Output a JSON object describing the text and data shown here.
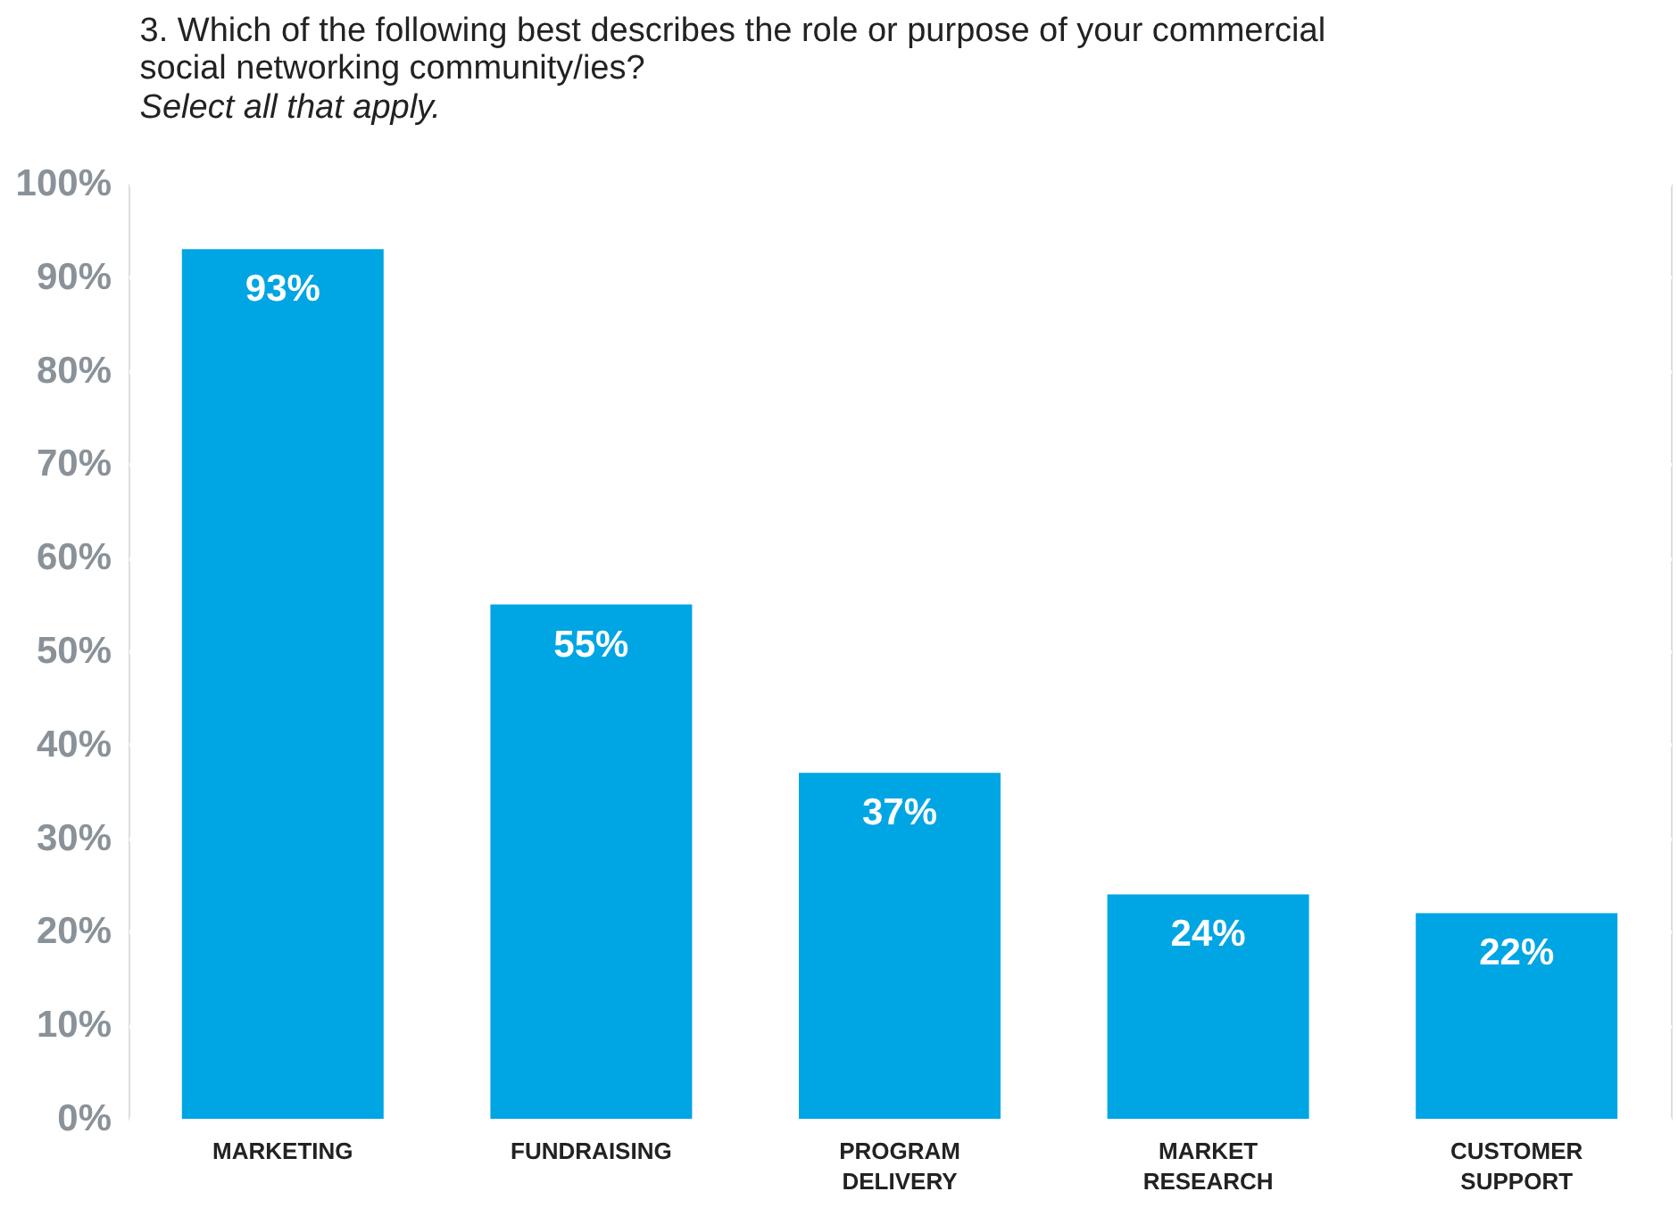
{
  "chart_data": {
    "type": "bar",
    "title": "3. Which of the following best describes the role or purpose of your commercial social networking community/ies?",
    "subtitle": "Select all that apply.",
    "categories": [
      "MARKETING",
      "FUNDRAISING",
      "PROGRAM DELIVERY",
      "MARKET RESEARCH",
      "CUSTOMER SUPPORT"
    ],
    "values": [
      93,
      55,
      37,
      24,
      22
    ],
    "value_labels": [
      "93%",
      "55%",
      "37%",
      "24%",
      "22%"
    ],
    "color": "#00a5e3",
    "ylim": [
      0,
      100
    ],
    "yticks": [
      {
        "value": 0,
        "label": "0%"
      },
      {
        "value": 10,
        "label": "10%"
      },
      {
        "value": 20,
        "label": "20%"
      },
      {
        "value": 30,
        "label": "30%"
      },
      {
        "value": 40,
        "label": "40%"
      },
      {
        "value": 50,
        "label": "50%"
      },
      {
        "value": 60,
        "label": "60%"
      },
      {
        "value": 70,
        "label": "70%"
      },
      {
        "value": 80,
        "label": "80%"
      },
      {
        "value": 90,
        "label": "90%"
      },
      {
        "value": 100,
        "label": "100%"
      }
    ],
    "grid": "y"
  }
}
